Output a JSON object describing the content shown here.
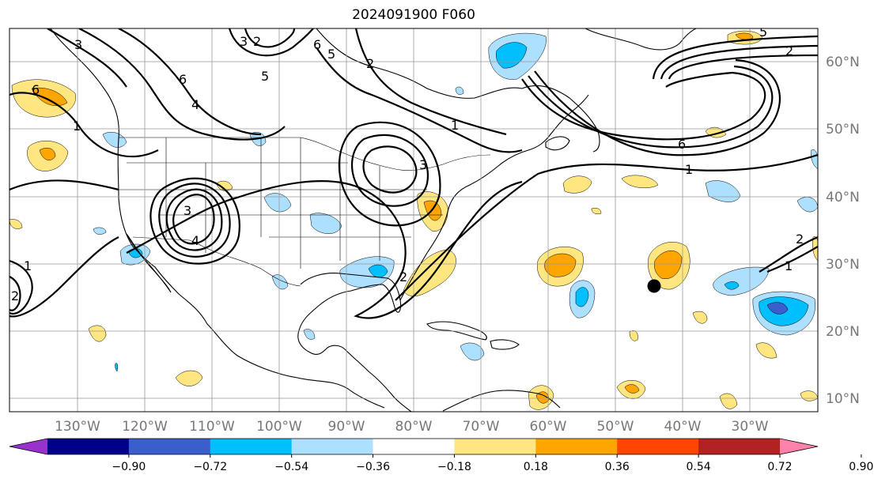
{
  "title": "2024091900 F060",
  "lat_labels": [
    "60°N",
    "50°N",
    "40°N",
    "30°N",
    "20°N",
    "10°N"
  ],
  "lon_labels": [
    "130°W",
    "120°W",
    "110°W",
    "100°W",
    "90°W",
    "80°W",
    "70°W",
    "60°W",
    "50°W",
    "40°W",
    "30°W"
  ],
  "colorbar": {
    "ticks": [
      "−0.90",
      "−0.72",
      "−0.54",
      "−0.36",
      "−0.18",
      "0.18",
      "0.36",
      "0.54",
      "0.72",
      "0.90"
    ],
    "colors": [
      "#9932cc",
      "#00008b",
      "#3a5fcd",
      "#00bfff",
      "#addfff",
      "#ffffff",
      "#ffe680",
      "#ffa500",
      "#ff4500",
      "#b22222",
      "#ff82ab"
    ]
  },
  "contour_labels": [
    "6",
    "2",
    "3",
    "1",
    "2",
    "6",
    "1",
    "2",
    "6",
    "5",
    "4",
    "3",
    "2",
    "1",
    "3",
    "6",
    "4",
    "1",
    "5",
    "2",
    "1",
    "3",
    "5",
    "2"
  ],
  "marker": "storm-center"
}
